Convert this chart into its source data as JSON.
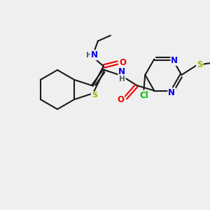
{
  "bg_color": "#efefef",
  "bond_color": "#1a1a1a",
  "atom_colors": {
    "N": "#0000ee",
    "O": "#ee0000",
    "S": "#aaaa00",
    "Cl": "#00bb00",
    "C": "#1a1a1a",
    "H": "#506060"
  }
}
